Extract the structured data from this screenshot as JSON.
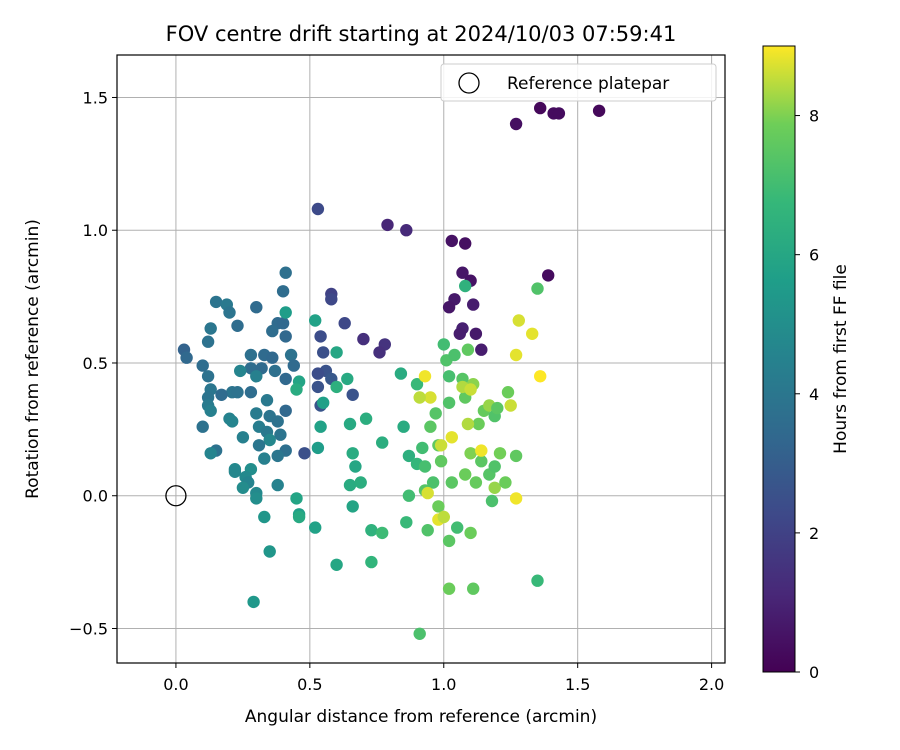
{
  "chart_data": {
    "type": "scatter",
    "title": "FOV centre drift starting at 2024/10/03 07:59:41",
    "xlabel": "Angular distance from reference (arcmin)",
    "ylabel": "Rotation from reference (arcmin)",
    "xlim": [
      -0.22,
      2.05
    ],
    "ylim": [
      -0.63,
      1.66
    ],
    "xticks": [
      "0.0",
      "0.5",
      "1.0",
      "1.5",
      "2.0"
    ],
    "xtick_values": [
      0.0,
      0.5,
      1.0,
      1.5,
      2.0
    ],
    "yticks": [
      "−0.5",
      "0.0",
      "0.5",
      "1.0",
      "1.5"
    ],
    "ytick_values": [
      -0.5,
      0.0,
      0.5,
      1.0,
      1.5
    ],
    "grid": true,
    "legend": {
      "entry": "Reference platepar",
      "placement": "top-right"
    },
    "reference_point": {
      "x": 0.0,
      "y": 0.0
    },
    "colorbar": {
      "label": "Hours from first FF file",
      "colormap": "viridis",
      "range": [
        0,
        9
      ],
      "ticks": [
        "0",
        "2",
        "4",
        "6",
        "8"
      ],
      "tick_values": [
        0,
        2,
        4,
        6,
        8
      ]
    },
    "points": [
      {
        "x": 1.36,
        "y": 1.46,
        "c": 0.2
      },
      {
        "x": 1.41,
        "y": 1.44,
        "c": 0.3
      },
      {
        "x": 1.43,
        "y": 1.44,
        "c": 0.3
      },
      {
        "x": 1.58,
        "y": 1.45,
        "c": 0.2
      },
      {
        "x": 1.27,
        "y": 1.4,
        "c": 0.4
      },
      {
        "x": 1.03,
        "y": 0.96,
        "c": 0.5
      },
      {
        "x": 1.08,
        "y": 0.95,
        "c": 0.4
      },
      {
        "x": 1.07,
        "y": 0.84,
        "c": 0.6
      },
      {
        "x": 1.1,
        "y": 0.81,
        "c": 0.5
      },
      {
        "x": 1.39,
        "y": 0.83,
        "c": 0.3
      },
      {
        "x": 1.04,
        "y": 0.74,
        "c": 0.7
      },
      {
        "x": 1.11,
        "y": 0.72,
        "c": 0.8
      },
      {
        "x": 1.02,
        "y": 0.71,
        "c": 0.6
      },
      {
        "x": 1.07,
        "y": 0.63,
        "c": 0.9
      },
      {
        "x": 1.06,
        "y": 0.61,
        "c": 0.8
      },
      {
        "x": 1.12,
        "y": 0.61,
        "c": 0.7
      },
      {
        "x": 1.14,
        "y": 0.55,
        "c": 0.8
      },
      {
        "x": 0.79,
        "y": 1.02,
        "c": 1.1
      },
      {
        "x": 0.86,
        "y": 1.0,
        "c": 1.2
      },
      {
        "x": 0.7,
        "y": 0.59,
        "c": 1.4
      },
      {
        "x": 0.78,
        "y": 0.57,
        "c": 1.5
      },
      {
        "x": 0.76,
        "y": 0.54,
        "c": 1.4
      },
      {
        "x": 0.53,
        "y": 1.08,
        "c": 2.3
      },
      {
        "x": 0.58,
        "y": 0.76,
        "c": 2.0
      },
      {
        "x": 0.58,
        "y": 0.74,
        "c": 2.2
      },
      {
        "x": 0.63,
        "y": 0.65,
        "c": 2.2
      },
      {
        "x": 0.54,
        "y": 0.6,
        "c": 2.4
      },
      {
        "x": 0.55,
        "y": 0.54,
        "c": 2.5
      },
      {
        "x": 0.56,
        "y": 0.47,
        "c": 2.6
      },
      {
        "x": 0.53,
        "y": 0.46,
        "c": 2.4
      },
      {
        "x": 0.58,
        "y": 0.44,
        "c": 2.8
      },
      {
        "x": 0.53,
        "y": 0.41,
        "c": 2.6
      },
      {
        "x": 0.54,
        "y": 0.34,
        "c": 2.7
      },
      {
        "x": 0.66,
        "y": 0.38,
        "c": 2.6
      },
      {
        "x": 0.48,
        "y": 0.16,
        "c": 2.5
      },
      {
        "x": 0.41,
        "y": 0.84,
        "c": 3.7
      },
      {
        "x": 0.4,
        "y": 0.77,
        "c": 3.6
      },
      {
        "x": 0.15,
        "y": 0.73,
        "c": 3.9
      },
      {
        "x": 0.19,
        "y": 0.72,
        "c": 4.1
      },
      {
        "x": 0.3,
        "y": 0.71,
        "c": 3.5
      },
      {
        "x": 0.2,
        "y": 0.69,
        "c": 3.9
      },
      {
        "x": 0.38,
        "y": 0.65,
        "c": 3.5
      },
      {
        "x": 0.4,
        "y": 0.65,
        "c": 3.4
      },
      {
        "x": 0.13,
        "y": 0.63,
        "c": 4.0
      },
      {
        "x": 0.23,
        "y": 0.64,
        "c": 3.6
      },
      {
        "x": 0.36,
        "y": 0.62,
        "c": 3.6
      },
      {
        "x": 0.41,
        "y": 0.6,
        "c": 3.4
      },
      {
        "x": 0.12,
        "y": 0.58,
        "c": 3.8
      },
      {
        "x": 0.03,
        "y": 0.55,
        "c": 3.2
      },
      {
        "x": 0.04,
        "y": 0.52,
        "c": 3.4
      },
      {
        "x": 0.28,
        "y": 0.53,
        "c": 3.7
      },
      {
        "x": 0.33,
        "y": 0.53,
        "c": 3.5
      },
      {
        "x": 0.36,
        "y": 0.52,
        "c": 3.4
      },
      {
        "x": 0.43,
        "y": 0.53,
        "c": 3.8
      },
      {
        "x": 0.44,
        "y": 0.49,
        "c": 3.5
      },
      {
        "x": 0.1,
        "y": 0.49,
        "c": 3.6
      },
      {
        "x": 0.28,
        "y": 0.48,
        "c": 3.6
      },
      {
        "x": 0.32,
        "y": 0.48,
        "c": 3.5
      },
      {
        "x": 0.37,
        "y": 0.47,
        "c": 3.7
      },
      {
        "x": 0.12,
        "y": 0.45,
        "c": 3.8
      },
      {
        "x": 0.24,
        "y": 0.47,
        "c": 4.6
      },
      {
        "x": 0.3,
        "y": 0.45,
        "c": 4.4
      },
      {
        "x": 0.41,
        "y": 0.44,
        "c": 3.4
      },
      {
        "x": 0.13,
        "y": 0.4,
        "c": 4.0
      },
      {
        "x": 0.21,
        "y": 0.39,
        "c": 3.9
      },
      {
        "x": 0.23,
        "y": 0.39,
        "c": 3.8
      },
      {
        "x": 0.17,
        "y": 0.38,
        "c": 3.5
      },
      {
        "x": 0.28,
        "y": 0.39,
        "c": 3.6
      },
      {
        "x": 0.12,
        "y": 0.37,
        "c": 3.9
      },
      {
        "x": 0.34,
        "y": 0.36,
        "c": 4.1
      },
      {
        "x": 0.12,
        "y": 0.34,
        "c": 4.2
      },
      {
        "x": 0.41,
        "y": 0.32,
        "c": 3.4
      },
      {
        "x": 0.13,
        "y": 0.32,
        "c": 4.4
      },
      {
        "x": 0.3,
        "y": 0.31,
        "c": 4.2
      },
      {
        "x": 0.35,
        "y": 0.3,
        "c": 3.9
      },
      {
        "x": 0.2,
        "y": 0.29,
        "c": 4.5
      },
      {
        "x": 0.21,
        "y": 0.28,
        "c": 4.6
      },
      {
        "x": 0.38,
        "y": 0.28,
        "c": 3.8
      },
      {
        "x": 0.31,
        "y": 0.26,
        "c": 4.3
      },
      {
        "x": 0.34,
        "y": 0.24,
        "c": 4.1
      },
      {
        "x": 0.39,
        "y": 0.23,
        "c": 3.9
      },
      {
        "x": 0.1,
        "y": 0.26,
        "c": 3.8
      },
      {
        "x": 0.25,
        "y": 0.22,
        "c": 4.4
      },
      {
        "x": 0.35,
        "y": 0.21,
        "c": 4.7
      },
      {
        "x": 0.31,
        "y": 0.19,
        "c": 4.0
      },
      {
        "x": 0.41,
        "y": 0.17,
        "c": 3.7
      },
      {
        "x": 0.15,
        "y": 0.17,
        "c": 3.8
      },
      {
        "x": 0.13,
        "y": 0.16,
        "c": 4.6
      },
      {
        "x": 0.38,
        "y": 0.15,
        "c": 4.0
      },
      {
        "x": 0.33,
        "y": 0.14,
        "c": 4.4
      },
      {
        "x": 0.22,
        "y": 0.1,
        "c": 4.8
      },
      {
        "x": 0.28,
        "y": 0.1,
        "c": 5.0
      },
      {
        "x": 0.22,
        "y": 0.09,
        "c": 4.7
      },
      {
        "x": 0.26,
        "y": 0.07,
        "c": 4.8
      },
      {
        "x": 0.27,
        "y": 0.05,
        "c": 4.6
      },
      {
        "x": 0.25,
        "y": 0.03,
        "c": 4.9
      },
      {
        "x": 0.38,
        "y": 0.04,
        "c": 4.5
      },
      {
        "x": 0.3,
        "y": 0.01,
        "c": 4.8
      },
      {
        "x": 0.3,
        "y": -0.01,
        "c": 5.0
      },
      {
        "x": 0.33,
        "y": -0.08,
        "c": 5.3
      },
      {
        "x": 0.35,
        "y": -0.21,
        "c": 5.3
      },
      {
        "x": 0.29,
        "y": -0.4,
        "c": 5.4
      },
      {
        "x": 0.41,
        "y": 0.69,
        "c": 5.6
      },
      {
        "x": 0.52,
        "y": 0.66,
        "c": 5.8
      },
      {
        "x": 0.53,
        "y": 0.18,
        "c": 5.6
      },
      {
        "x": 0.54,
        "y": 0.26,
        "c": 5.8
      },
      {
        "x": 0.55,
        "y": 0.35,
        "c": 5.7
      },
      {
        "x": 0.6,
        "y": 0.54,
        "c": 6.0
      },
      {
        "x": 0.64,
        "y": 0.44,
        "c": 6.1
      },
      {
        "x": 0.46,
        "y": 0.43,
        "c": 5.9
      },
      {
        "x": 0.45,
        "y": 0.4,
        "c": 6.2
      },
      {
        "x": 0.46,
        "y": -0.07,
        "c": 5.7
      },
      {
        "x": 0.46,
        "y": -0.08,
        "c": 6.1
      },
      {
        "x": 0.45,
        "y": -0.01,
        "c": 5.9
      },
      {
        "x": 0.52,
        "y": -0.12,
        "c": 5.8
      },
      {
        "x": 0.6,
        "y": -0.26,
        "c": 6.0
      },
      {
        "x": 0.65,
        "y": 0.27,
        "c": 6.1
      },
      {
        "x": 0.66,
        "y": 0.16,
        "c": 6.2
      },
      {
        "x": 0.67,
        "y": 0.11,
        "c": 6.0
      },
      {
        "x": 0.65,
        "y": 0.04,
        "c": 6.2
      },
      {
        "x": 0.66,
        "y": -0.04,
        "c": 5.9
      },
      {
        "x": 0.6,
        "y": 0.41,
        "c": 6.4
      },
      {
        "x": 0.69,
        "y": 0.05,
        "c": 6.3
      },
      {
        "x": 0.71,
        "y": 0.29,
        "c": 6.3
      },
      {
        "x": 0.73,
        "y": -0.13,
        "c": 6.5
      },
      {
        "x": 0.73,
        "y": -0.25,
        "c": 6.6
      },
      {
        "x": 0.77,
        "y": -0.14,
        "c": 6.9
      },
      {
        "x": 0.77,
        "y": 0.2,
        "c": 6.3
      },
      {
        "x": 0.84,
        "y": 0.46,
        "c": 6.2
      },
      {
        "x": 0.85,
        "y": 0.26,
        "c": 6.2
      },
      {
        "x": 0.87,
        "y": 0.15,
        "c": 6.4
      },
      {
        "x": 0.86,
        "y": -0.1,
        "c": 6.8
      },
      {
        "x": 0.87,
        "y": 0.0,
        "c": 7.0
      },
      {
        "x": 0.9,
        "y": 0.12,
        "c": 6.7
      },
      {
        "x": 0.9,
        "y": 0.42,
        "c": 6.8
      },
      {
        "x": 0.91,
        "y": -0.52,
        "c": 7.2
      },
      {
        "x": 0.92,
        "y": 0.18,
        "c": 7.0
      },
      {
        "x": 0.93,
        "y": 0.11,
        "c": 7.1
      },
      {
        "x": 0.93,
        "y": 0.02,
        "c": 7.4
      },
      {
        "x": 0.94,
        "y": -0.13,
        "c": 7.3
      },
      {
        "x": 0.95,
        "y": 0.26,
        "c": 7.5
      },
      {
        "x": 0.96,
        "y": 0.05,
        "c": 7.2
      },
      {
        "x": 0.97,
        "y": 0.31,
        "c": 7.4
      },
      {
        "x": 0.98,
        "y": 0.19,
        "c": 7.6
      },
      {
        "x": 0.98,
        "y": -0.04,
        "c": 7.8
      },
      {
        "x": 0.99,
        "y": 0.13,
        "c": 7.6
      },
      {
        "x": 1.0,
        "y": 0.57,
        "c": 7.0
      },
      {
        "x": 1.01,
        "y": 0.51,
        "c": 7.3
      },
      {
        "x": 1.02,
        "y": 0.45,
        "c": 7.1
      },
      {
        "x": 1.02,
        "y": 0.35,
        "c": 7.3
      },
      {
        "x": 1.03,
        "y": 0.05,
        "c": 7.5
      },
      {
        "x": 1.02,
        "y": -0.17,
        "c": 7.5
      },
      {
        "x": 1.02,
        "y": -0.35,
        "c": 7.8
      },
      {
        "x": 1.04,
        "y": 0.53,
        "c": 7.2
      },
      {
        "x": 1.05,
        "y": -0.12,
        "c": 7.0
      },
      {
        "x": 1.07,
        "y": 0.44,
        "c": 7.4
      },
      {
        "x": 1.08,
        "y": 0.79,
        "c": 6.5
      },
      {
        "x": 1.08,
        "y": 0.37,
        "c": 7.6
      },
      {
        "x": 1.08,
        "y": 0.08,
        "c": 7.8
      },
      {
        "x": 1.09,
        "y": 0.55,
        "c": 7.6
      },
      {
        "x": 1.1,
        "y": -0.14,
        "c": 7.8
      },
      {
        "x": 1.1,
        "y": 0.16,
        "c": 8.0
      },
      {
        "x": 1.11,
        "y": 0.42,
        "c": 8.1
      },
      {
        "x": 1.11,
        "y": -0.35,
        "c": 7.6
      },
      {
        "x": 1.12,
        "y": 0.05,
        "c": 7.7
      },
      {
        "x": 1.13,
        "y": 0.27,
        "c": 7.8
      },
      {
        "x": 1.14,
        "y": 0.13,
        "c": 7.5
      },
      {
        "x": 1.15,
        "y": 0.32,
        "c": 7.7
      },
      {
        "x": 1.17,
        "y": 0.34,
        "c": 8.2
      },
      {
        "x": 1.17,
        "y": 0.08,
        "c": 7.4
      },
      {
        "x": 1.18,
        "y": -0.02,
        "c": 7.2
      },
      {
        "x": 1.19,
        "y": 0.11,
        "c": 7.3
      },
      {
        "x": 1.19,
        "y": 0.3,
        "c": 7.3
      },
      {
        "x": 1.2,
        "y": 0.33,
        "c": 7.5
      },
      {
        "x": 1.19,
        "y": 0.03,
        "c": 8.2
      },
      {
        "x": 1.21,
        "y": 0.16,
        "c": 7.9
      },
      {
        "x": 1.23,
        "y": 0.05,
        "c": 7.8
      },
      {
        "x": 1.24,
        "y": 0.39,
        "c": 7.8
      },
      {
        "x": 1.25,
        "y": 0.34,
        "c": 8.6
      },
      {
        "x": 1.27,
        "y": -0.01,
        "c": 8.9
      },
      {
        "x": 1.27,
        "y": 0.15,
        "c": 7.6
      },
      {
        "x": 1.27,
        "y": 0.53,
        "c": 8.8
      },
      {
        "x": 1.28,
        "y": 0.66,
        "c": 8.7
      },
      {
        "x": 1.33,
        "y": 0.61,
        "c": 8.8
      },
      {
        "x": 1.35,
        "y": 0.78,
        "c": 7.3
      },
      {
        "x": 1.36,
        "y": 0.45,
        "c": 9.0
      },
      {
        "x": 1.35,
        "y": -0.32,
        "c": 6.8
      },
      {
        "x": 0.93,
        "y": 0.45,
        "c": 8.9
      },
      {
        "x": 0.95,
        "y": 0.37,
        "c": 8.7
      },
      {
        "x": 0.91,
        "y": 0.37,
        "c": 8.5
      },
      {
        "x": 1.07,
        "y": 0.41,
        "c": 8.4
      },
      {
        "x": 1.1,
        "y": 0.4,
        "c": 8.6
      },
      {
        "x": 1.03,
        "y": 0.22,
        "c": 8.8
      },
      {
        "x": 1.09,
        "y": 0.27,
        "c": 8.4
      },
      {
        "x": 0.99,
        "y": 0.19,
        "c": 8.6
      },
      {
        "x": 1.14,
        "y": 0.17,
        "c": 8.9
      },
      {
        "x": 0.98,
        "y": -0.09,
        "c": 8.8
      },
      {
        "x": 1.0,
        "y": -0.08,
        "c": 8.5
      },
      {
        "x": 0.94,
        "y": 0.01,
        "c": 8.7
      }
    ]
  }
}
